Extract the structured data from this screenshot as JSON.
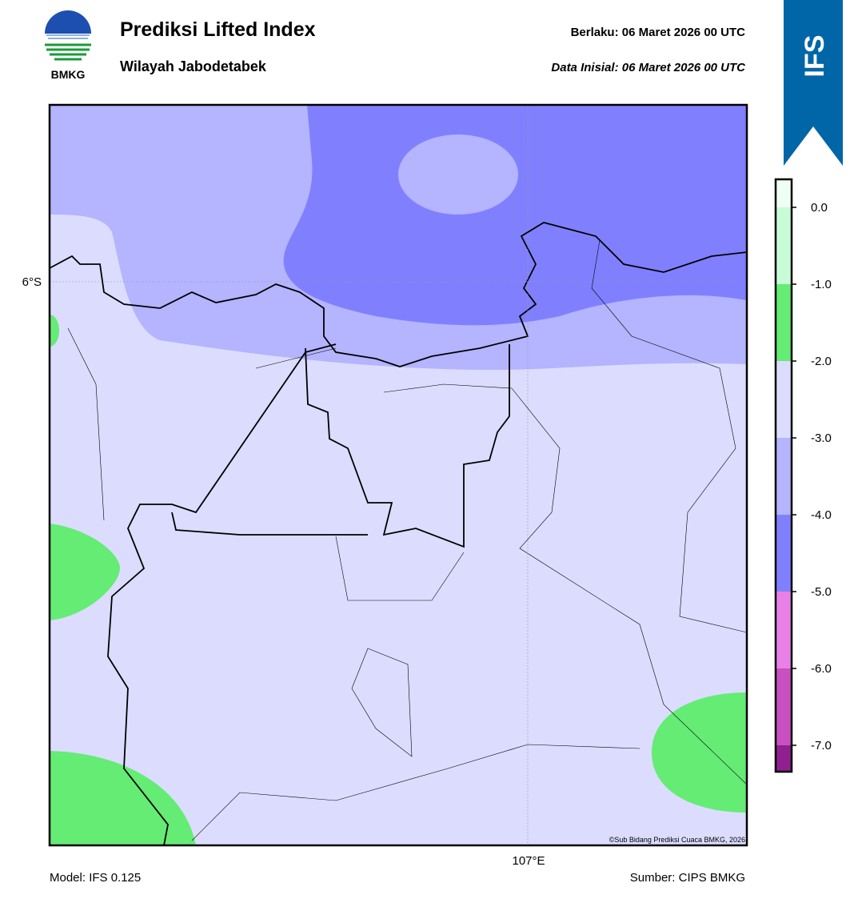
{
  "header": {
    "title": "Prediksi Lifted Index",
    "subtitle": "Wilayah Jabodetabek",
    "valid": "Berlaku:  06 Maret 2026 00 UTC",
    "init": "Data Inisial:  06 Maret 2026 00 UTC",
    "logo_text": "BMKG",
    "badge": "IFS"
  },
  "map": {
    "lat_label": "6°S",
    "lon_label": "107°E",
    "credit": "©Sub Bidang Prediksi Cuaca BMKG, 2026"
  },
  "colorbar": {
    "ticks": [
      "0.0",
      "-1.0",
      "-2.0",
      "-3.0",
      "-4.0",
      "-5.0",
      "-6.0",
      "-7.0"
    ],
    "colors": [
      "#eefff4",
      "#c8fcd8",
      "#64ec74",
      "#dcdcff",
      "#b4b4ff",
      "#8080ff",
      "#e880e8",
      "#c850c0",
      "#902090"
    ]
  },
  "footer": {
    "model": "Model: IFS 0.125",
    "source": "Sumber: CIPS BMKG"
  }
}
